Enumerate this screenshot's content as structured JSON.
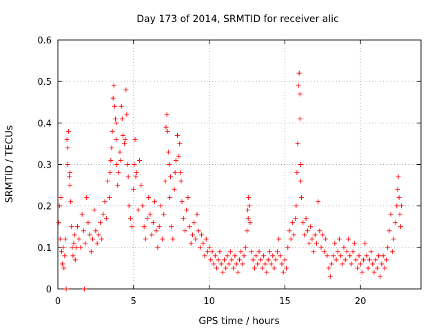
{
  "chart_data": {
    "type": "scatter",
    "title": "Day 173 of 2014, SRMTID for receiver alic",
    "xlabel": "GPS time / hours",
    "ylabel": "SRMTID / TECUs",
    "xlim": [
      0,
      24
    ],
    "ylim": [
      0,
      0.6
    ],
    "xticks": [
      0,
      5,
      10,
      15,
      20
    ],
    "xtick_labels": [
      "0",
      "5",
      "10",
      "15",
      "20"
    ],
    "yticks": [
      0,
      0.1,
      0.2,
      0.3,
      0.4,
      0.5,
      0.6
    ],
    "ytick_labels": [
      "0",
      "0.1",
      "0.2",
      "0.3",
      "0.4",
      "0.5",
      "0.6"
    ],
    "grid": true,
    "marker": "plus",
    "series": [
      {
        "name": "SRMTID",
        "color": "#ff0000",
        "points": [
          [
            0.05,
            0.16
          ],
          [
            0.1,
            0.2
          ],
          [
            0.15,
            0.12
          ],
          [
            0.2,
            0.22
          ],
          [
            0.25,
            0.09
          ],
          [
            0.3,
            0.06
          ],
          [
            0.35,
            0.1
          ],
          [
            0.4,
            0.05
          ],
          [
            0.45,
            0.08
          ],
          [
            0.5,
            0.12
          ],
          [
            0.55,
            0.0
          ],
          [
            0.6,
            0.36
          ],
          [
            0.65,
            0.34
          ],
          [
            0.7,
            0.38
          ],
          [
            0.75,
            0.27
          ],
          [
            0.8,
            0.25
          ],
          [
            0.85,
            0.21
          ],
          [
            0.9,
            0.15
          ],
          [
            0.95,
            0.1
          ],
          [
            1.0,
            0.08
          ],
          [
            1.05,
            0.11
          ],
          [
            1.1,
            0.13
          ],
          [
            1.15,
            0.07
          ],
          [
            1.2,
            0.1
          ],
          [
            1.3,
            0.15
          ],
          [
            1.4,
            0.12
          ],
          [
            1.5,
            0.1
          ],
          [
            1.6,
            0.18
          ],
          [
            1.7,
            0.14
          ],
          [
            1.75,
            0.0
          ],
          [
            1.8,
            0.11
          ],
          [
            1.9,
            0.22
          ],
          [
            2.0,
            0.16
          ],
          [
            2.1,
            0.13
          ],
          [
            2.2,
            0.09
          ],
          [
            2.3,
            0.12
          ],
          [
            2.4,
            0.19
          ],
          [
            2.5,
            0.14
          ],
          [
            2.6,
            0.11
          ],
          [
            2.7,
            0.13
          ],
          [
            2.8,
            0.16
          ],
          [
            2.9,
            0.12
          ],
          [
            3.0,
            0.18
          ],
          [
            3.1,
            0.21
          ],
          [
            3.2,
            0.17
          ],
          [
            3.3,
            0.26
          ],
          [
            3.4,
            0.22
          ],
          [
            3.5,
            0.31
          ],
          [
            3.6,
            0.38
          ],
          [
            3.7,
            0.49
          ],
          [
            3.75,
            0.44
          ],
          [
            3.8,
            0.41
          ],
          [
            3.85,
            0.36
          ],
          [
            3.9,
            0.3
          ],
          [
            3.95,
            0.25
          ],
          [
            4.0,
            0.28
          ],
          [
            4.1,
            0.33
          ],
          [
            4.2,
            0.44
          ],
          [
            4.3,
            0.37
          ],
          [
            4.4,
            0.35
          ],
          [
            4.5,
            0.48
          ],
          [
            4.55,
            0.42
          ],
          [
            4.6,
            0.3
          ],
          [
            4.7,
            0.2
          ],
          [
            4.8,
            0.17
          ],
          [
            4.9,
            0.15
          ],
          [
            5.0,
            0.24
          ],
          [
            5.1,
            0.36
          ],
          [
            5.2,
            0.28
          ],
          [
            5.3,
            0.19
          ],
          [
            5.4,
            0.31
          ],
          [
            5.5,
            0.25
          ],
          [
            5.6,
            0.2
          ],
          [
            5.7,
            0.15
          ],
          [
            5.8,
            0.12
          ],
          [
            5.9,
            0.17
          ],
          [
            6.0,
            0.22
          ],
          [
            6.1,
            0.18
          ],
          [
            6.2,
            0.13
          ],
          [
            6.3,
            0.16
          ],
          [
            6.4,
            0.21
          ],
          [
            6.5,
            0.14
          ],
          [
            6.6,
            0.1
          ],
          [
            6.7,
            0.15
          ],
          [
            6.8,
            0.2
          ],
          [
            6.9,
            0.12
          ],
          [
            7.0,
            0.18
          ],
          [
            7.1,
            0.26
          ],
          [
            7.2,
            0.42
          ],
          [
            7.25,
            0.38
          ],
          [
            7.3,
            0.33
          ],
          [
            7.35,
            0.3
          ],
          [
            7.4,
            0.22
          ],
          [
            7.5,
            0.15
          ],
          [
            7.6,
            0.12
          ],
          [
            7.7,
            0.24
          ],
          [
            7.8,
            0.31
          ],
          [
            7.9,
            0.37
          ],
          [
            8.0,
            0.32
          ],
          [
            8.1,
            0.28
          ],
          [
            8.2,
            0.21
          ],
          [
            8.3,
            0.17
          ],
          [
            8.4,
            0.14
          ],
          [
            8.5,
            0.19
          ],
          [
            8.6,
            0.22
          ],
          [
            8.7,
            0.15
          ],
          [
            8.8,
            0.11
          ],
          [
            8.9,
            0.13
          ],
          [
            9.0,
            0.16
          ],
          [
            9.1,
            0.12
          ],
          [
            9.2,
            0.18
          ],
          [
            9.3,
            0.14
          ],
          [
            9.4,
            0.1
          ],
          [
            9.5,
            0.13
          ],
          [
            9.6,
            0.11
          ],
          [
            9.7,
            0.08
          ],
          [
            9.8,
            0.12
          ],
          [
            9.9,
            0.09
          ],
          [
            10.0,
            0.1
          ],
          [
            10.1,
            0.07
          ],
          [
            10.2,
            0.09
          ],
          [
            10.3,
            0.06
          ],
          [
            10.4,
            0.08
          ],
          [
            10.5,
            0.05
          ],
          [
            10.6,
            0.07
          ],
          [
            10.7,
            0.09
          ],
          [
            10.8,
            0.06
          ],
          [
            10.9,
            0.04
          ],
          [
            11.0,
            0.07
          ],
          [
            11.1,
            0.05
          ],
          [
            11.2,
            0.08
          ],
          [
            11.3,
            0.06
          ],
          [
            11.4,
            0.09
          ],
          [
            11.5,
            0.07
          ],
          [
            11.6,
            0.05
          ],
          [
            11.7,
            0.08
          ],
          [
            11.8,
            0.06
          ],
          [
            11.9,
            0.04
          ],
          [
            12.0,
            0.07
          ],
          [
            12.1,
            0.09
          ],
          [
            12.2,
            0.06
          ],
          [
            12.3,
            0.08
          ],
          [
            12.4,
            0.1
          ],
          [
            12.5,
            0.14
          ],
          [
            12.55,
            0.19
          ],
          [
            12.6,
            0.22
          ],
          [
            12.65,
            0.2
          ],
          [
            12.7,
            0.16
          ],
          [
            12.8,
            0.09
          ],
          [
            12.9,
            0.07
          ],
          [
            13.0,
            0.05
          ],
          [
            13.1,
            0.08
          ],
          [
            13.2,
            0.06
          ],
          [
            13.3,
            0.09
          ],
          [
            13.4,
            0.07
          ],
          [
            13.5,
            0.05
          ],
          [
            13.6,
            0.08
          ],
          [
            13.7,
            0.06
          ],
          [
            13.8,
            0.04
          ],
          [
            13.9,
            0.07
          ],
          [
            14.0,
            0.09
          ],
          [
            14.1,
            0.06
          ],
          [
            14.2,
            0.08
          ],
          [
            14.3,
            0.05
          ],
          [
            14.4,
            0.07
          ],
          [
            14.5,
            0.09
          ],
          [
            14.6,
            0.12
          ],
          [
            14.7,
            0.08
          ],
          [
            14.8,
            0.06
          ],
          [
            14.9,
            0.04
          ],
          [
            15.0,
            0.07
          ],
          [
            15.1,
            0.05
          ],
          [
            15.2,
            0.1
          ],
          [
            15.3,
            0.14
          ],
          [
            15.4,
            0.12
          ],
          [
            15.5,
            0.16
          ],
          [
            15.6,
            0.13
          ],
          [
            15.7,
            0.17
          ],
          [
            15.75,
            0.2
          ],
          [
            15.8,
            0.28
          ],
          [
            15.85,
            0.35
          ],
          [
            15.9,
            0.49
          ],
          [
            15.95,
            0.52
          ],
          [
            16.0,
            0.41
          ],
          [
            16.05,
            0.3
          ],
          [
            16.1,
            0.22
          ],
          [
            16.2,
            0.16
          ],
          [
            16.3,
            0.13
          ],
          [
            16.4,
            0.17
          ],
          [
            16.5,
            0.14
          ],
          [
            16.6,
            0.11
          ],
          [
            16.7,
            0.15
          ],
          [
            16.8,
            0.12
          ],
          [
            16.9,
            0.09
          ],
          [
            17.0,
            0.13
          ],
          [
            17.1,
            0.11
          ],
          [
            17.2,
            0.21
          ],
          [
            17.3,
            0.14
          ],
          [
            17.4,
            0.1
          ],
          [
            17.5,
            0.13
          ],
          [
            17.6,
            0.09
          ],
          [
            17.7,
            0.12
          ],
          [
            17.8,
            0.08
          ],
          [
            17.9,
            0.05
          ],
          [
            18.0,
            0.03
          ],
          [
            18.1,
            0.06
          ],
          [
            18.2,
            0.08
          ],
          [
            18.3,
            0.11
          ],
          [
            18.4,
            0.07
          ],
          [
            18.5,
            0.09
          ],
          [
            18.6,
            0.12
          ],
          [
            18.7,
            0.08
          ],
          [
            18.8,
            0.06
          ],
          [
            18.9,
            0.1
          ],
          [
            19.0,
            0.07
          ],
          [
            19.1,
            0.09
          ],
          [
            19.2,
            0.12
          ],
          [
            19.3,
            0.08
          ],
          [
            19.4,
            0.06
          ],
          [
            19.5,
            0.09
          ],
          [
            19.6,
            0.11
          ],
          [
            19.7,
            0.07
          ],
          [
            19.8,
            0.05
          ],
          [
            19.9,
            0.08
          ],
          [
            20.0,
            0.06
          ],
          [
            20.1,
            0.04
          ],
          [
            20.2,
            0.07
          ],
          [
            20.3,
            0.11
          ],
          [
            20.4,
            0.08
          ],
          [
            20.5,
            0.05
          ],
          [
            20.6,
            0.07
          ],
          [
            20.7,
            0.09
          ],
          [
            20.8,
            0.06
          ],
          [
            20.9,
            0.04
          ],
          [
            21.0,
            0.07
          ],
          [
            21.1,
            0.05
          ],
          [
            21.2,
            0.08
          ],
          [
            21.3,
            0.03
          ],
          [
            21.4,
            0.06
          ],
          [
            21.5,
            0.08
          ],
          [
            21.6,
            0.05
          ],
          [
            21.7,
            0.07
          ],
          [
            21.8,
            0.1
          ],
          [
            21.9,
            0.14
          ],
          [
            22.0,
            0.18
          ],
          [
            22.1,
            0.09
          ],
          [
            22.2,
            0.12
          ],
          [
            22.3,
            0.16
          ],
          [
            22.4,
            0.2
          ],
          [
            22.45,
            0.24
          ],
          [
            22.5,
            0.27
          ],
          [
            22.55,
            0.22
          ],
          [
            22.6,
            0.18
          ],
          [
            22.65,
            0.15
          ],
          [
            22.7,
            0.2
          ],
          [
            3.65,
            0.46
          ],
          [
            4.25,
            0.41
          ],
          [
            4.45,
            0.36
          ],
          [
            3.85,
            0.4
          ],
          [
            7.15,
            0.39
          ],
          [
            8.05,
            0.35
          ],
          [
            16.0,
            0.47
          ],
          [
            3.55,
            0.34
          ],
          [
            4.15,
            0.31
          ],
          [
            4.65,
            0.27
          ],
          [
            5.05,
            0.3
          ],
          [
            5.15,
            0.27
          ],
          [
            3.45,
            0.28
          ],
          [
            7.45,
            0.27
          ],
          [
            7.75,
            0.28
          ],
          [
            8.15,
            0.26
          ],
          [
            0.65,
            0.3
          ],
          [
            0.8,
            0.28
          ],
          [
            16.05,
            0.26
          ],
          [
            12.58,
            0.17
          ]
        ]
      }
    ]
  }
}
